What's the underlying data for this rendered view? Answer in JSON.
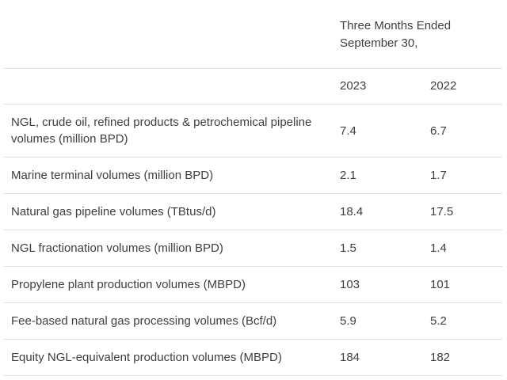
{
  "chart_data": {
    "type": "table",
    "title": "",
    "period_header": "Three Months Ended September 30,",
    "columns": [
      "2023",
      "2022"
    ],
    "rows": [
      {
        "label": "NGL, crude oil, refined products & petrochemical pipeline volumes (million BPD)",
        "values": [
          "7.4",
          "6.7"
        ]
      },
      {
        "label": "Marine terminal volumes (million BPD)",
        "values": [
          "2.1",
          "1.7"
        ]
      },
      {
        "label": "Natural gas pipeline volumes (TBtus/d)",
        "values": [
          "18.4",
          "17.5"
        ]
      },
      {
        "label": "NGL fractionation volumes (million BPD)",
        "values": [
          "1.5",
          "1.4"
        ]
      },
      {
        "label": "Propylene plant production volumes (MBPD)",
        "values": [
          "103",
          "101"
        ]
      },
      {
        "label": "Fee-based natural gas processing volumes (Bcf/d)",
        "values": [
          "5.9",
          "5.2"
        ]
      },
      {
        "label": "Equity NGL-equivalent production volumes (MBPD)",
        "values": [
          "184",
          "182"
        ]
      }
    ],
    "layout": {
      "grid": "horizontal-dividers-only",
      "legend_position": "none"
    }
  },
  "colors": {
    "text": "#3a3f44",
    "divider": "#e0e0e0",
    "background": "#ffffff"
  }
}
